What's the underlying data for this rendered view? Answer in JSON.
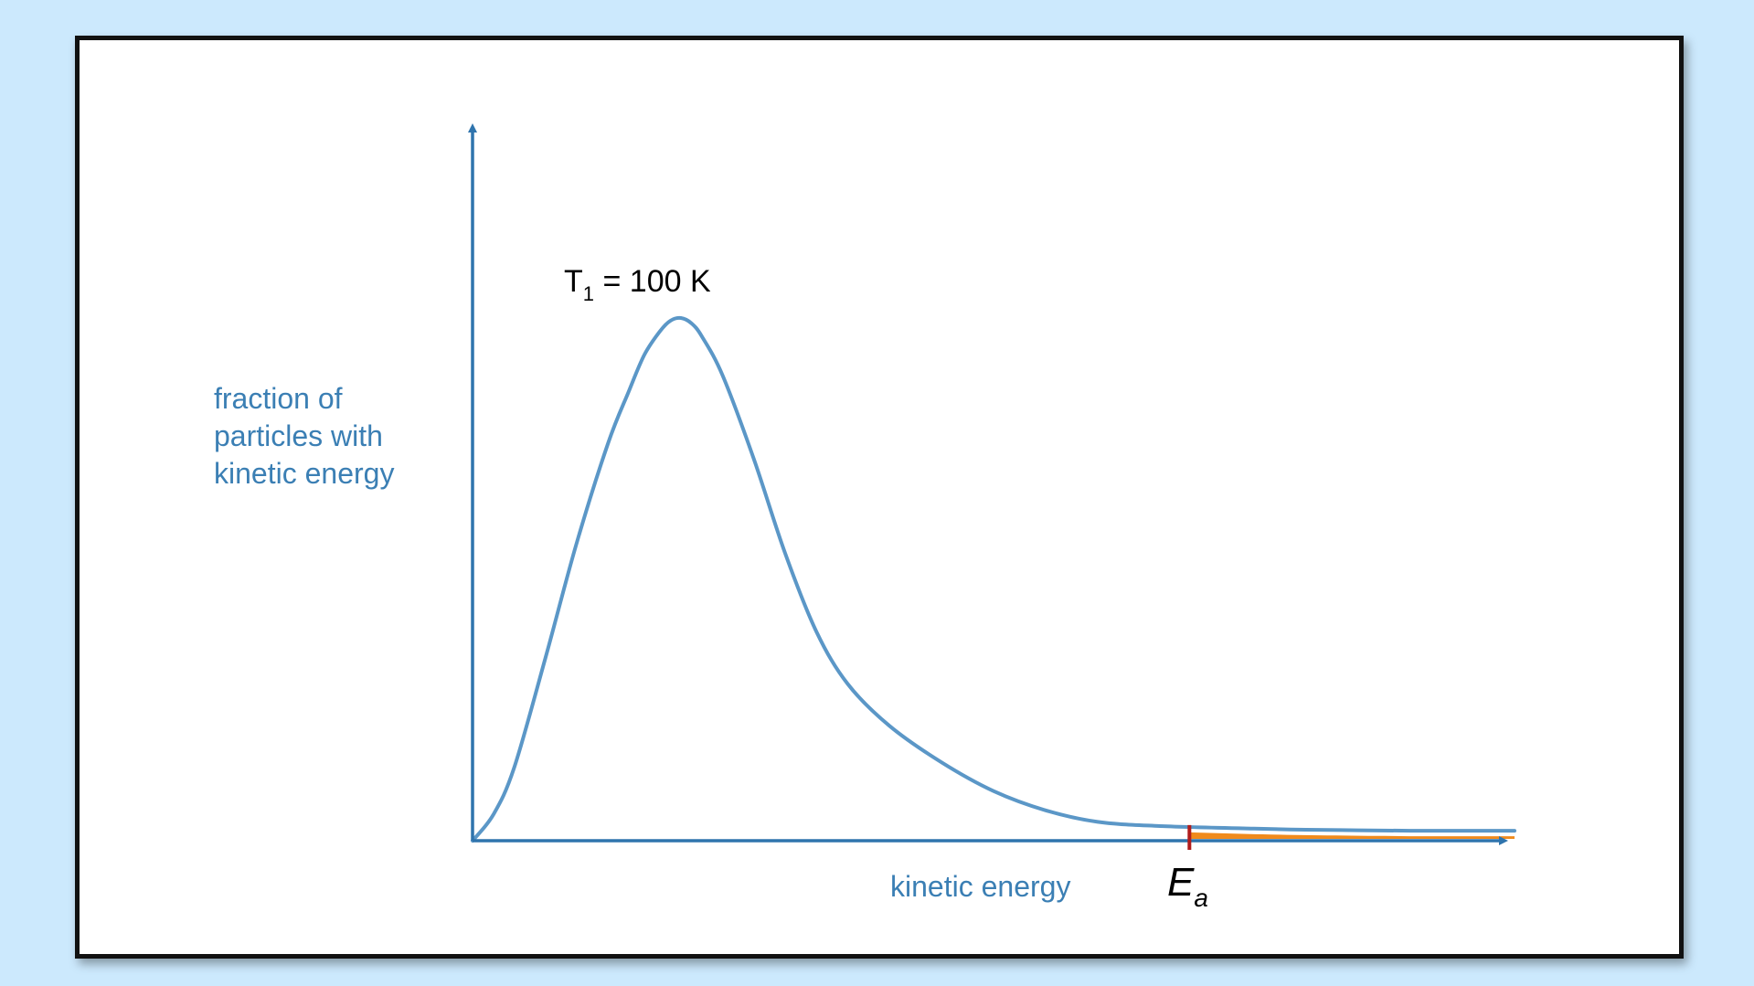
{
  "chart_data": {
    "type": "line",
    "title": "",
    "xlabel": "kinetic energy",
    "ylabel": [
      "fraction of",
      "particles with",
      "kinetic energy"
    ],
    "series": [
      {
        "label_main": "T",
        "label_sub": "1",
        "label_rest": " = 100 K",
        "points": [
          [
            0,
            0
          ],
          [
            0.02,
            0.05
          ],
          [
            0.04,
            0.14
          ],
          [
            0.07,
            0.35
          ],
          [
            0.1,
            0.57
          ],
          [
            0.13,
            0.76
          ],
          [
            0.15,
            0.86
          ],
          [
            0.165,
            0.93
          ],
          [
            0.18,
            0.975
          ],
          [
            0.19,
            0.995
          ],
          [
            0.2,
            1.0
          ],
          [
            0.21,
            0.99
          ],
          [
            0.22,
            0.965
          ],
          [
            0.24,
            0.89
          ],
          [
            0.27,
            0.73
          ],
          [
            0.3,
            0.55
          ],
          [
            0.33,
            0.4
          ],
          [
            0.36,
            0.3
          ],
          [
            0.4,
            0.22
          ],
          [
            0.45,
            0.15
          ],
          [
            0.5,
            0.095
          ],
          [
            0.55,
            0.058
          ],
          [
            0.6,
            0.036
          ],
          [
            0.66,
            0.028
          ],
          [
            0.75,
            0.023
          ],
          [
            0.8,
            0.021
          ],
          [
            0.85,
            0.02
          ],
          [
            0.9,
            0.019
          ],
          [
            0.95,
            0.019
          ],
          [
            1.0,
            0.019
          ]
        ]
      }
    ],
    "activation_energy": {
      "label_main": "E",
      "label_sub": "a",
      "x": 0.688
    },
    "xlim": [
      0,
      1
    ],
    "ylim": [
      0,
      1
    ],
    "grid": false,
    "colors": {
      "curve": "#5b97c7",
      "axes": "#2f74ad",
      "ea_marker": "#b01c1c",
      "shaded_area": "#f08a1c",
      "background": "#cce9fd"
    }
  }
}
